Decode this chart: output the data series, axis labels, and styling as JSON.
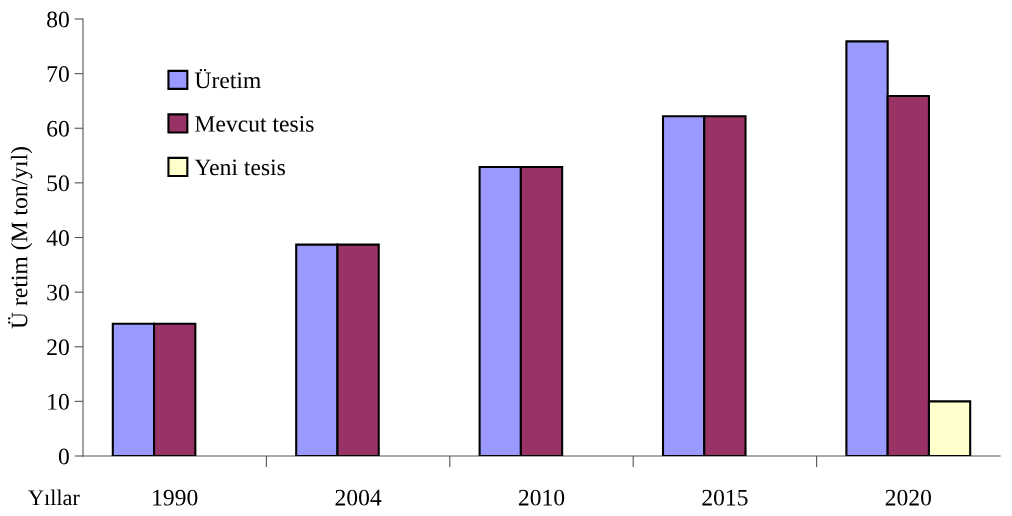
{
  "chart_data": {
    "type": "bar",
    "xlabel": "Yıllar",
    "ylabel": "Ü retim (M ton/yıl)",
    "categories": [
      "1990",
      "2004",
      "2010",
      "2015",
      "2020"
    ],
    "series": [
      {
        "name": "Üretim",
        "color": "#9999ff",
        "values": [
          24.2,
          38.7,
          52.9,
          62.2,
          75.9
        ]
      },
      {
        "name": "Mevcut tesis",
        "color": "#993366",
        "values": [
          24.2,
          38.7,
          52.9,
          62.2,
          65.9
        ]
      },
      {
        "name": "Yeni tesis",
        "color": "#ffffcc",
        "values": [
          null,
          null,
          null,
          null,
          10
        ]
      }
    ],
    "ylim": [
      0,
      80
    ],
    "yticks": [
      0,
      10,
      20,
      30,
      40,
      50,
      60,
      70,
      80
    ],
    "grid": false,
    "legend": "top left"
  }
}
